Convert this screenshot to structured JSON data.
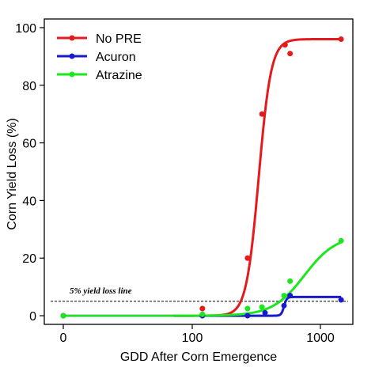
{
  "chart_data": {
    "type": "line",
    "xlabel": "GDD After Corn Emergence",
    "ylabel": "Corn Yield Loss (%)",
    "x_scale": "log",
    "ylim": [
      -3,
      103
    ],
    "x_ticks": [
      {
        "value": 0,
        "label": "0"
      },
      {
        "value": 100,
        "label": "100"
      },
      {
        "value": 1000,
        "label": "1000"
      }
    ],
    "y_ticks": [
      0,
      20,
      40,
      60,
      80,
      100
    ],
    "legend": {
      "position": "top-left"
    },
    "reference_line": {
      "y": 5,
      "label": "5% yield loss line",
      "style": "dashed"
    },
    "series": [
      {
        "name": "No PRE",
        "color": "#e41a1c",
        "points": [
          [
            0,
            0
          ],
          [
            120,
            2.5
          ],
          [
            270,
            20
          ],
          [
            350,
            70
          ],
          [
            530,
            94
          ],
          [
            580,
            91
          ],
          [
            1450,
            96
          ]
        ],
        "curve": {
          "xmin": 72,
          "xmax": 1450,
          "c": 96,
          "x50": 330,
          "b": 9
        }
      },
      {
        "name": "Acuron",
        "color": "#1a1acd",
        "points": [
          [
            0,
            0
          ],
          [
            120,
            0
          ],
          [
            270,
            0
          ],
          [
            370,
            1
          ],
          [
            520,
            3.5
          ],
          [
            580,
            7
          ],
          [
            1450,
            5.5
          ]
        ],
        "curve": {
          "xmin": 72,
          "xmax": 1450,
          "c": 6.5,
          "x50": 520,
          "b": 40
        }
      },
      {
        "name": "Atrazine",
        "color": "#1ee61e",
        "points": [
          [
            0,
            0
          ],
          [
            120,
            0.5
          ],
          [
            270,
            2.5
          ],
          [
            350,
            3
          ],
          [
            520,
            7
          ],
          [
            580,
            12
          ],
          [
            1450,
            26
          ]
        ],
        "curve": {
          "xmin": 72,
          "xmax": 1450,
          "c": 28,
          "x50": 750,
          "b": 3.5
        }
      }
    ]
  }
}
